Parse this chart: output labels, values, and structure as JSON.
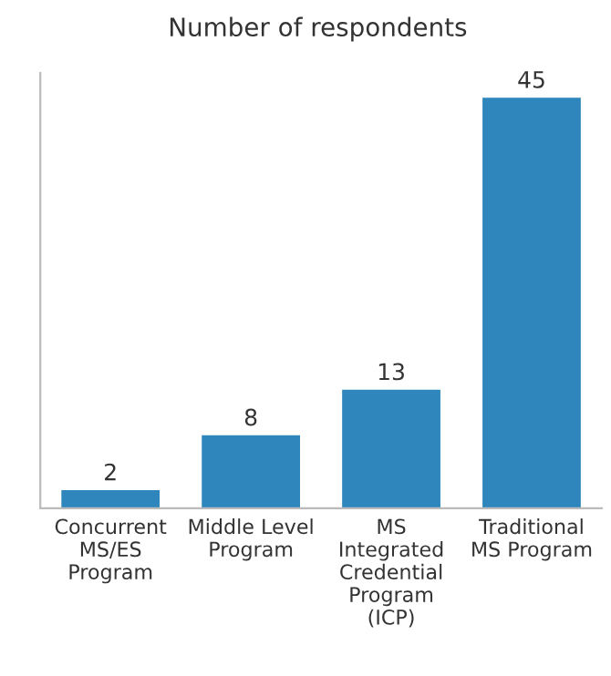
{
  "chart_data": {
    "type": "bar",
    "title": "Number of respondents",
    "categories": [
      "Concurrent\nMS/ES\nProgram",
      "Middle Level\nProgram",
      "MS\nIntegrated\nCredential\nProgram\n(ICP)",
      "Traditional\nMS Program"
    ],
    "values": [
      2,
      8,
      13,
      45
    ],
    "color": "#2e86bc",
    "data_labels": true,
    "grid": false,
    "legend": false,
    "tick_labels": "x"
  }
}
